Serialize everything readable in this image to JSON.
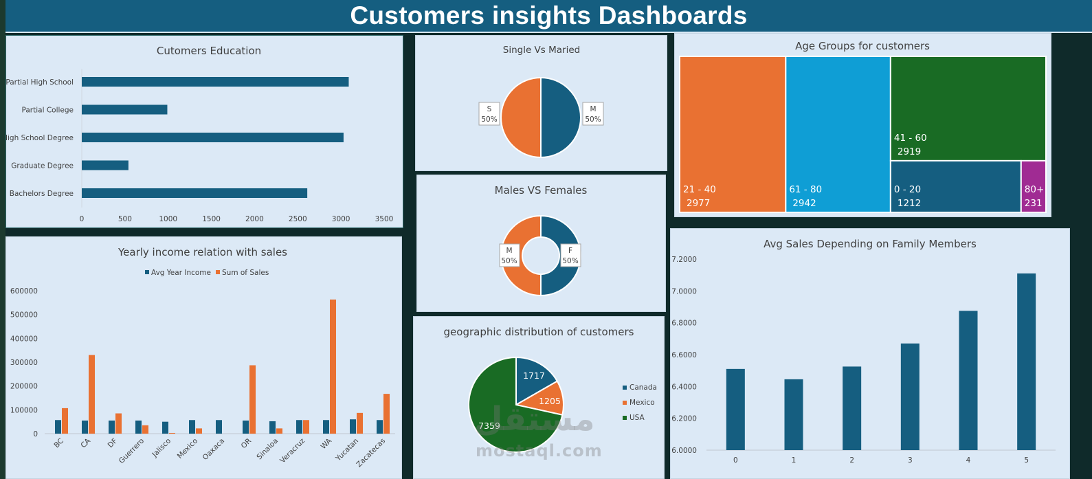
{
  "header": {
    "title": "Customers insights Dashboards"
  },
  "colors": {
    "blue": "#155e80",
    "orange": "#e97132",
    "green": "#196b24",
    "cyan": "#0f9ed5",
    "purple": "#a02b93",
    "panel": "#dce9f6"
  },
  "watermark": {
    "arabic": "مستقل",
    "latin": "mostaql.com"
  },
  "chart_data": [
    {
      "id": "education",
      "type": "bar",
      "orientation": "horizontal",
      "title": "Cutomers Education",
      "categories": [
        "Partial High School",
        "Partial College",
        "High School Degree",
        "Graduate Degree",
        "Bachelors Degree"
      ],
      "values": [
        3090,
        990,
        3030,
        540,
        2610
      ],
      "xlim": [
        0,
        3500
      ],
      "xticks": [
        0,
        500,
        1000,
        1500,
        2000,
        2500,
        3000,
        3500
      ]
    },
    {
      "id": "marital",
      "type": "pie",
      "title": "Single Vs Maried",
      "slices": [
        {
          "label": "M",
          "pct": "50%",
          "value": 50
        },
        {
          "label": "S",
          "pct": "50%",
          "value": 50
        }
      ]
    },
    {
      "id": "gender",
      "type": "pie",
      "style": "doughnut",
      "title": "Males VS Females",
      "slices": [
        {
          "label": "F",
          "pct": "50%",
          "value": 50
        },
        {
          "label": "M",
          "pct": "50%",
          "value": 50
        }
      ]
    },
    {
      "id": "geo",
      "type": "pie",
      "title": "geographic distribution of customers",
      "legend": "right",
      "slices": [
        {
          "label": "Canada",
          "value": 1717
        },
        {
          "label": "Mexico",
          "value": 1205
        },
        {
          "label": "USA",
          "value": 7359
        }
      ]
    },
    {
      "id": "age",
      "type": "treemap",
      "title": "Age Groups for customers",
      "items": [
        {
          "label": "21 - 40",
          "value": 2977
        },
        {
          "label": "61 - 80",
          "value": 2942
        },
        {
          "label": "41 - 60",
          "value": 2919
        },
        {
          "label": "0 - 20",
          "value": 1212
        },
        {
          "label": "80+",
          "value": 231
        }
      ]
    },
    {
      "id": "income",
      "type": "bar",
      "title": "Yearly income relation with sales",
      "legend": "top",
      "categories": [
        "BC",
        "CA",
        "DF",
        "Guerrero",
        "Jalisco",
        "Mexico",
        "Oaxaca",
        "OR",
        "Sinaloa",
        "Veracruz",
        "WA",
        "Yucatan",
        "Zacatecas"
      ],
      "series": [
        {
          "name": "Avg Year Income",
          "values": [
            57000,
            55000,
            55000,
            55000,
            50000,
            57000,
            57000,
            55000,
            52000,
            57000,
            57000,
            60000,
            57000
          ]
        },
        {
          "name": "Sum of Sales",
          "values": [
            107000,
            330000,
            85000,
            35000,
            3000,
            22000,
            0,
            287000,
            22000,
            57000,
            563000,
            87000,
            167000
          ]
        }
      ],
      "ylim": [
        0,
        600000
      ],
      "yticks": [
        0,
        100000,
        200000,
        300000,
        400000,
        500000,
        600000
      ]
    },
    {
      "id": "family",
      "type": "bar",
      "title": "Avg Sales Depending  on Family Members",
      "categories": [
        "0",
        "1",
        "2",
        "3",
        "4",
        "5"
      ],
      "values": [
        6.51,
        6.445,
        6.525,
        6.67,
        6.875,
        7.11
      ],
      "ylim": [
        6.0,
        7.2
      ],
      "yticks": [
        "6.0000",
        "6.2000",
        "6.4000",
        "6.6000",
        "6.8000",
        "7.0000",
        "7.2000"
      ]
    }
  ]
}
